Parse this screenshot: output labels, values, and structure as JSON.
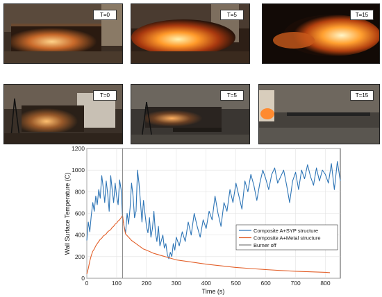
{
  "photos": {
    "row1": [
      {
        "label": "T=0"
      },
      {
        "label": "T=5"
      },
      {
        "label": "T=15"
      }
    ],
    "row2": [
      {
        "label": "T=0"
      },
      {
        "label": "T=5"
      },
      {
        "label": "T=15"
      }
    ]
  },
  "chart_data": {
    "type": "line",
    "xlabel": "Time (s)",
    "ylabel": "Wall Surface Temperature (C)",
    "xlim": [
      0,
      850
    ],
    "ylim": [
      0,
      1200
    ],
    "xticks": [
      0,
      100,
      200,
      300,
      400,
      500,
      600,
      700,
      800
    ],
    "yticks": [
      0,
      200,
      400,
      600,
      800,
      1000,
      1200
    ],
    "grid": true,
    "legend_position": "right",
    "burner_off_x": 120,
    "series": [
      {
        "name": "Composite A+SYP structure",
        "color": "#2e75b6",
        "x": [
          0,
          5,
          10,
          15,
          20,
          25,
          30,
          35,
          40,
          45,
          50,
          55,
          60,
          65,
          70,
          75,
          80,
          85,
          90,
          95,
          100,
          105,
          110,
          115,
          120,
          125,
          130,
          135,
          140,
          145,
          150,
          155,
          160,
          165,
          170,
          175,
          180,
          185,
          190,
          195,
          200,
          205,
          210,
          215,
          220,
          225,
          230,
          235,
          240,
          245,
          250,
          255,
          260,
          265,
          270,
          275,
          280,
          285,
          290,
          295,
          300,
          310,
          320,
          330,
          340,
          350,
          360,
          370,
          380,
          390,
          400,
          410,
          420,
          430,
          440,
          450,
          460,
          470,
          480,
          490,
          500,
          510,
          520,
          530,
          540,
          550,
          560,
          570,
          580,
          590,
          600,
          610,
          620,
          630,
          640,
          650,
          660,
          670,
          680,
          690,
          700,
          710,
          720,
          730,
          740,
          750,
          760,
          770,
          780,
          790,
          800,
          810,
          820,
          830,
          840,
          850
        ],
        "values": [
          350,
          520,
          430,
          580,
          700,
          620,
          760,
          680,
          820,
          740,
          950,
          840,
          700,
          900,
          780,
          620,
          950,
          820,
          700,
          880,
          760,
          680,
          910,
          820,
          560,
          480,
          420,
          600,
          500,
          650,
          880,
          760,
          560,
          620,
          1000,
          880,
          700,
          520,
          720,
          600,
          480,
          420,
          560,
          380,
          460,
          620,
          420,
          340,
          480,
          300,
          350,
          400,
          280,
          320,
          220,
          180,
          240,
          200,
          320,
          260,
          380,
          300,
          430,
          340,
          520,
          400,
          600,
          480,
          380,
          540,
          460,
          620,
          540,
          760,
          600,
          480,
          700,
          620,
          820,
          700,
          880,
          760,
          640,
          900,
          800,
          960,
          860,
          720,
          880,
          1000,
          920,
          820,
          960,
          1020,
          880,
          940,
          1000,
          860,
          700,
          900,
          980,
          820,
          1000,
          920,
          1050,
          940,
          860,
          1020,
          900,
          1000,
          960,
          880,
          1060,
          820,
          1080,
          900
        ]
      },
      {
        "name": "Composite A+Metal structure",
        "color": "#e3602a",
        "x": [
          0,
          5,
          10,
          15,
          20,
          25,
          30,
          35,
          40,
          45,
          50,
          55,
          60,
          65,
          70,
          75,
          80,
          85,
          90,
          95,
          100,
          105,
          110,
          115,
          120,
          125,
          130,
          140,
          150,
          160,
          170,
          180,
          190,
          200,
          225,
          250,
          275,
          300,
          350,
          400,
          450,
          500,
          550,
          600,
          650,
          700,
          750,
          800,
          815
        ],
        "values": [
          40,
          90,
          160,
          210,
          250,
          270,
          300,
          320,
          340,
          360,
          370,
          390,
          400,
          410,
          430,
          440,
          450,
          470,
          480,
          500,
          510,
          530,
          540,
          560,
          580,
          470,
          410,
          380,
          350,
          330,
          310,
          290,
          270,
          260,
          230,
          210,
          190,
          170,
          150,
          130,
          115,
          100,
          90,
          80,
          72,
          65,
          60,
          55,
          52
        ]
      },
      {
        "name": "Burner off",
        "color": "#7f7f7f"
      }
    ]
  }
}
